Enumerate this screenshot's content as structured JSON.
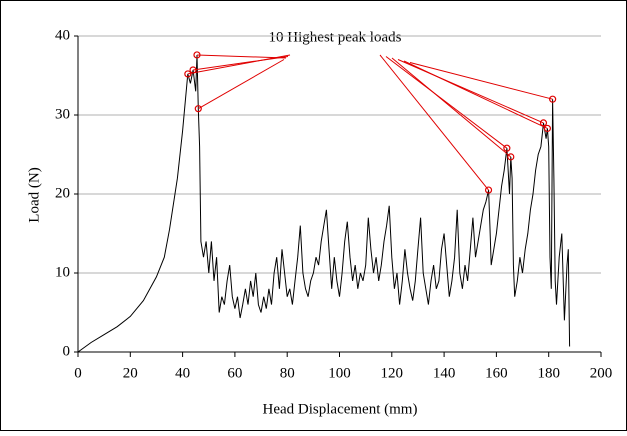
{
  "chart_data": {
    "type": "line",
    "annotation": "10 Highest peak loads",
    "xlabel": "Head Displacement (mm)",
    "ylabel": "Load (N)",
    "xlim": [
      0,
      200
    ],
    "xticks": [
      0,
      20,
      40,
      60,
      80,
      100,
      120,
      140,
      160,
      180,
      200
    ],
    "ylim": [
      0,
      40
    ],
    "yticks": [
      0,
      10,
      20,
      30,
      40
    ],
    "grid": true,
    "series": [
      {
        "color": "#000000",
        "x": [
          0,
          5,
          10,
          15,
          20,
          25,
          30,
          33,
          35,
          38,
          40,
          42,
          43,
          44,
          45,
          45.5,
          46,
          46.5,
          47,
          48,
          49,
          50,
          51,
          52,
          53,
          54,
          55,
          56,
          57,
          58,
          59,
          60,
          61,
          62,
          63,
          64,
          65,
          66,
          67,
          68,
          69,
          70,
          71,
          72,
          73,
          74,
          75,
          76,
          77,
          78,
          79,
          80,
          81,
          82,
          83,
          84,
          85,
          86,
          87,
          88,
          89,
          90,
          91,
          92,
          93,
          94,
          95,
          96,
          97,
          98,
          99,
          100,
          101,
          102,
          103,
          104,
          105,
          106,
          107,
          108,
          109,
          110,
          111,
          112,
          113,
          114,
          115,
          116,
          117,
          118,
          119,
          120,
          121,
          122,
          123,
          124,
          125,
          126,
          127,
          128,
          129,
          130,
          131,
          132,
          133,
          134,
          135,
          136,
          137,
          138,
          139,
          140,
          141,
          142,
          143,
          144,
          145,
          146,
          147,
          148,
          149,
          150,
          151,
          152,
          153,
          154,
          155,
          156,
          157,
          157.5,
          158,
          159,
          160,
          161,
          162,
          163,
          164,
          165,
          165.5,
          166,
          166.5,
          167,
          168,
          169,
          170,
          171,
          172,
          173,
          174,
          175,
          176,
          177,
          178,
          179,
          179.5,
          180,
          180.5,
          181,
          181.5,
          182,
          182.5,
          183,
          184,
          185,
          186,
          187,
          187.5,
          188
        ],
        "values": [
          0,
          1.2,
          2.2,
          3.2,
          4.5,
          6.5,
          9.5,
          12,
          15.5,
          22,
          28,
          35.2,
          34,
          35.7,
          33,
          37.6,
          30.8,
          26,
          14,
          12,
          14,
          10,
          14,
          9,
          12,
          5,
          7,
          6,
          9,
          11,
          7,
          5.5,
          7,
          4.3,
          6,
          8,
          6,
          9,
          7,
          10,
          6,
          5,
          7,
          5.5,
          8,
          6,
          10,
          12,
          8,
          13,
          10,
          7,
          8,
          6,
          9,
          12,
          16,
          10,
          8,
          7,
          9,
          10,
          12,
          11,
          14,
          16,
          18,
          13,
          8,
          12,
          9,
          7,
          10,
          14,
          16.5,
          12,
          9,
          11,
          8,
          10,
          9,
          11,
          17,
          13,
          10,
          12,
          9,
          11,
          14,
          16,
          18.5,
          12,
          8,
          10,
          6,
          9,
          13,
          10,
          8,
          6.5,
          9,
          13,
          17,
          10,
          8,
          6,
          9,
          11,
          8,
          9,
          13,
          15,
          11,
          7,
          9,
          12,
          18,
          10,
          8,
          11,
          9,
          13,
          17,
          12,
          14,
          16,
          18,
          19,
          20.5,
          16,
          11,
          13,
          15,
          18,
          21,
          23,
          25.8,
          20,
          24.7,
          22,
          11,
          7,
          9,
          12,
          10,
          13,
          15,
          18,
          20,
          23,
          25,
          26,
          29,
          27,
          28.3,
          26,
          12,
          8,
          32,
          22,
          9,
          6,
          12,
          15,
          4,
          11,
          13,
          0.7
        ]
      }
    ],
    "peaks": {
      "color": "#e00000",
      "x": [
        42,
        44,
        45.5,
        46,
        157,
        164,
        165.5,
        178,
        179.5,
        181.5
      ],
      "values": [
        35.2,
        35.7,
        37.6,
        30.8,
        20.5,
        25.8,
        24.7,
        29,
        28.3,
        32
      ]
    }
  }
}
